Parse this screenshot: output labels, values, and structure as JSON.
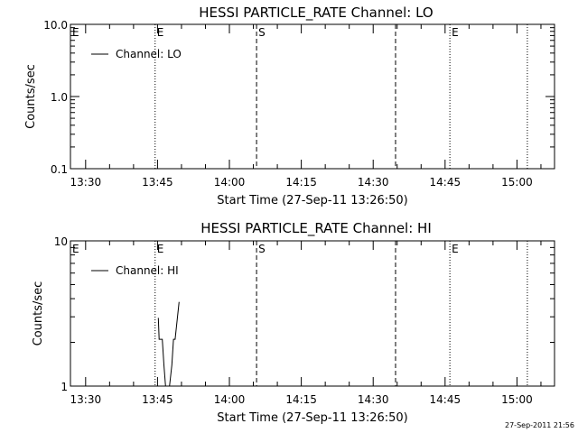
{
  "footer": {
    "timestamp": "27-Sep-2011 21:56"
  },
  "chart_data": [
    {
      "type": "line",
      "title": "HESSI PARTICLE_RATE Channel: LO",
      "xlabel": "Start Time (27-Sep-11 13:26:50)",
      "ylabel": "Counts/sec",
      "yscale": "log",
      "ylim": [
        0.1,
        10.0
      ],
      "yticks": [
        "10.0",
        "1.0",
        "0.1"
      ],
      "xlim": [
        "13:26:50",
        "15:07:50"
      ],
      "xticks": [
        "13:30",
        "13:45",
        "14:00",
        "14:15",
        "14:30",
        "14:45",
        "15:00"
      ],
      "legend": {
        "position": "top-left",
        "entries": [
          "Channel: LO"
        ]
      },
      "series": [
        {
          "name": "Channel: LO",
          "x": [],
          "y": []
        }
      ],
      "markers": [
        {
          "time": "13:44:30",
          "style": "dotted",
          "label": "E"
        },
        {
          "time": "14:05:40",
          "style": "dashed",
          "label": "S"
        },
        {
          "time": "14:34:40",
          "style": "dashed",
          "label": ""
        },
        {
          "time": "14:46:00",
          "style": "dotted",
          "label": "E"
        },
        {
          "time": "15:02:10",
          "style": "dotted",
          "label": ""
        }
      ]
    },
    {
      "type": "line",
      "title": "HESSI PARTICLE_RATE Channel: HI",
      "xlabel": "Start Time (27-Sep-11 13:26:50)",
      "ylabel": "Counts/sec",
      "yscale": "log",
      "ylim": [
        1,
        10
      ],
      "yticks": [
        "10",
        "1"
      ],
      "xlim": [
        "13:26:50",
        "15:07:50"
      ],
      "xticks": [
        "13:30",
        "13:45",
        "14:00",
        "14:15",
        "14:30",
        "14:45",
        "15:00"
      ],
      "legend": {
        "position": "top-left",
        "entries": [
          "Channel: HI"
        ]
      },
      "series": [
        {
          "name": "Channel: HI",
          "x": [
            "13:45:10",
            "13:45:20",
            "13:46:00",
            "13:46:20",
            "13:46:40",
            "13:47:30",
            "13:48:00",
            "13:48:20",
            "13:48:40",
            "13:49:30"
          ],
          "y": [
            2.95,
            2.1,
            2.1,
            1.4,
            1.0,
            1.0,
            1.4,
            2.1,
            2.1,
            3.8
          ]
        }
      ],
      "markers": [
        {
          "time": "13:44:30",
          "style": "dotted",
          "label": "E"
        },
        {
          "time": "14:05:40",
          "style": "dashed",
          "label": "S"
        },
        {
          "time": "14:34:40",
          "style": "dashed",
          "label": ""
        },
        {
          "time": "14:46:00",
          "style": "dotted",
          "label": "E"
        },
        {
          "time": "15:02:10",
          "style": "dotted",
          "label": ""
        }
      ]
    }
  ]
}
